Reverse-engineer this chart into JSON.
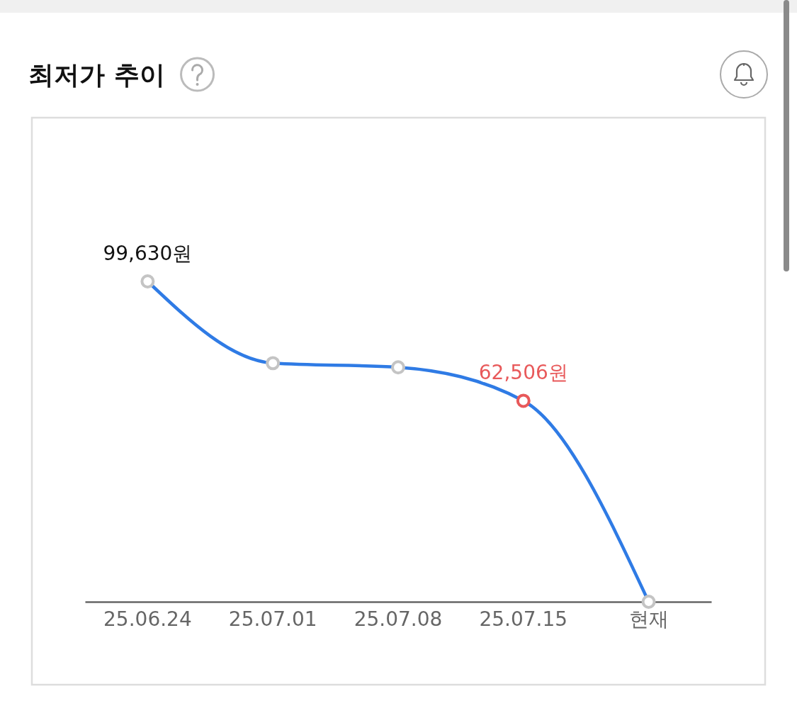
{
  "chart_data": {
    "type": "line",
    "title": "최저가 추이",
    "categories": [
      "25.06.24",
      "25.07.01",
      "25.07.08",
      "25.07.15",
      "현재"
    ],
    "series": [
      {
        "color": "#2f7be5",
        "values": [
          99630,
          74200,
          72900,
          62506,
          0
        ],
        "colors": [
          "#c4c4c4",
          "#c4c4c4",
          "#c4c4c4",
          "#e8595a",
          "#c4c4c4"
        ],
        "value_labels": [
          "99,630원",
          null,
          null,
          "62,506원",
          null
        ]
      }
    ],
    "marker": "circle",
    "line_style": "solid",
    "tick_labels": "x"
  }
}
